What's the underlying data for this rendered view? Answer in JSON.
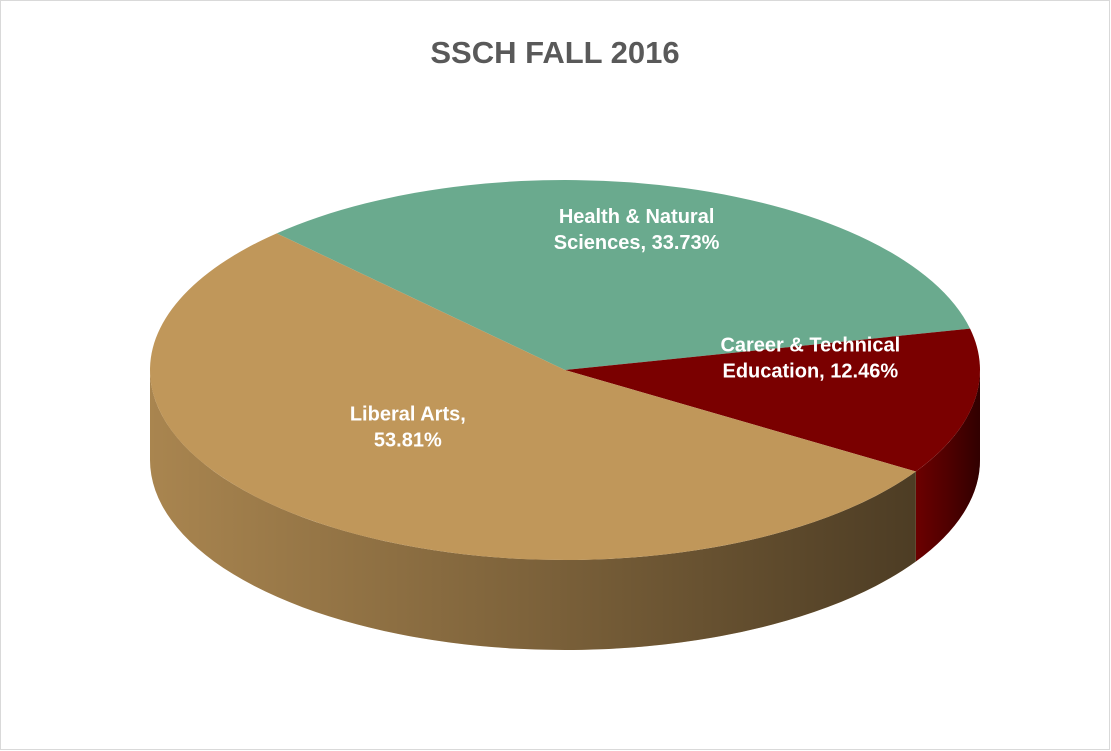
{
  "chart_data": {
    "type": "pie3d",
    "title": "SSCH FALL 2016",
    "values": [
      33.73,
      12.46,
      53.81
    ],
    "value_labels": [
      "Health & Natural Sciences, 33.73%",
      "Career & Technical Education, 12.46%",
      "Liberal Arts, 53.81%"
    ],
    "colors": [
      "#6aaa8e",
      "#7a0000",
      "#c0975a"
    ]
  }
}
